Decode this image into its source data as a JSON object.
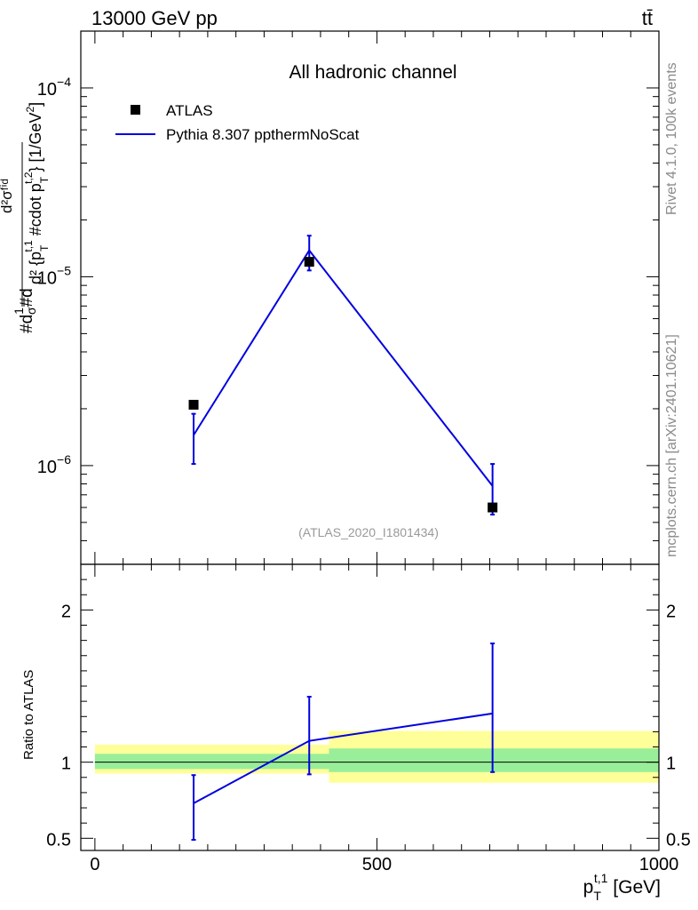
{
  "header": {
    "left": "13000 GeV pp",
    "right": "tt̄"
  },
  "side_labels": {
    "rivet": "Rivet 4.1.0,  100k events",
    "mcplots": "mcplots.cern.ch [arXiv:2401.10621]"
  },
  "chart_data": [
    {
      "type": "scatter",
      "panel": "main",
      "title": "All hadronic channel",
      "ylabel": "#d{1}{#sigma}#d{d^{2}#sigma^{fid}}{d^{2} {p_{T}^{t,1} #cdot p_{T}^{t,2}}} [1/GeV^{2}]",
      "ylabel_lines": [
        "#d",
        "1",
        "σ",
        "#d",
        "d²σᶠⁱᵈ",
        "d² {p",
        "T",
        "t,1",
        " #cdot p",
        "T",
        "t,2",
        "} [1/GeV",
        "2",
        "]"
      ],
      "yscale": "log",
      "ylim": [
        3e-07,
        0.0002
      ],
      "xlim": [
        -25,
        1000
      ],
      "ytick_labels": [
        "10",
        "−6",
        "10",
        "−5",
        "10",
        "−4"
      ],
      "ytick_values": [
        1e-06,
        1e-05,
        0.0001
      ],
      "legend": {
        "position": "top-left",
        "entries": [
          "ATLAS",
          "Pythia 8.307 ppthermNoScat"
        ]
      },
      "watermark": "(ATLAS_2020_I1801434)",
      "series": [
        {
          "name": "ATLAS",
          "style": "marker",
          "x": [
            175,
            380,
            705
          ],
          "y": [
            2.1e-06,
            1.2e-05,
            6e-07
          ]
        },
        {
          "name": "Pythia 8.307 ppthermNoScat",
          "style": "line",
          "color": "#0000e0",
          "x": [
            175,
            380,
            705
          ],
          "y": [
            1.45e-06,
            1.38e-05,
            7.8e-07
          ],
          "yerr_low": [
            1.02e-06,
            1.08e-05,
            5.5e-07
          ],
          "yerr_high": [
            1.88e-06,
            1.65e-05,
            1.02e-06
          ]
        }
      ]
    },
    {
      "type": "line",
      "panel": "ratio",
      "ylabel": "Ratio to ATLAS",
      "xlabel": "p_{T}^{t,1} [GeV]",
      "xlabel_parts": [
        "p",
        "T",
        "t,1",
        " [GeV]"
      ],
      "ylim": [
        0.42,
        2.3
      ],
      "xtick_labels": [
        "0",
        "500",
        "1000"
      ],
      "xtick_values": [
        0,
        500,
        1000
      ],
      "ytick_labels": [
        "0.5",
        "1",
        "2"
      ],
      "ytick_values": [
        0.5,
        1,
        2
      ],
      "bands": [
        {
          "x": [
            0,
            415
          ],
          "inner": [
            0.955,
            1.055
          ],
          "outer": [
            0.925,
            1.115
          ]
        },
        {
          "x": [
            415,
            1000
          ],
          "inner": [
            0.935,
            1.09
          ],
          "outer": [
            0.865,
            1.205
          ]
        }
      ],
      "band_colors": {
        "inner": "#99ee99",
        "outer": "#ffff99"
      },
      "series": [
        {
          "name": "Pythia 8.307 ppthermNoScat",
          "color": "#0000e0",
          "x": [
            175,
            380,
            705
          ],
          "y": [
            0.73,
            1.14,
            1.32
          ],
          "yerr_low": [
            0.49,
            0.92,
            0.935
          ],
          "yerr_high": [
            0.915,
            1.43,
            1.78
          ]
        }
      ]
    }
  ]
}
